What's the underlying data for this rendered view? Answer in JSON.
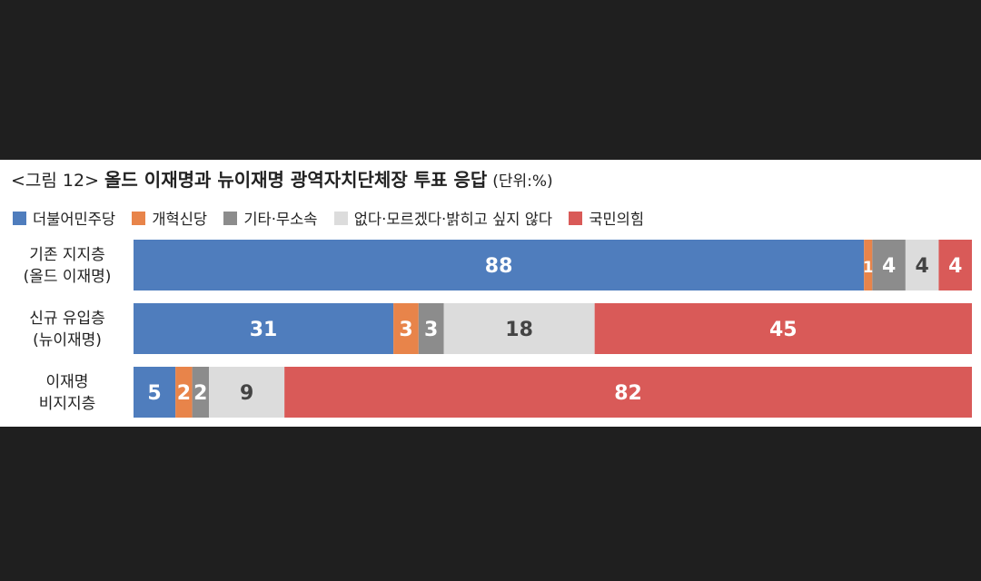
{
  "chart_data": {
    "type": "bar",
    "orientation": "horizontal",
    "stacked": true,
    "title_prefix": "<그림 12>",
    "title": "올드 이재명과 뉴이재명 광역자치단체장 투표 응답",
    "unit": "(단위:%)",
    "legend_placement": "top",
    "categories": [
      [
        "기존 지지층",
        "(올드 이재명)"
      ],
      [
        "신규 유입층",
        "(뉴이재명)"
      ],
      [
        "이재명",
        "비지지층"
      ]
    ],
    "series": [
      {
        "name": "더불어민주당",
        "color": "#4f7dbd",
        "label_color": "#ffffff",
        "values": [
          88,
          31,
          5
        ]
      },
      {
        "name": "개혁신당",
        "color": "#e8844a",
        "label_color": "#ffffff",
        "values": [
          1,
          3,
          2
        ]
      },
      {
        "name": "기타·무소속",
        "color": "#8c8c8c",
        "label_color": "#ffffff",
        "values": [
          4,
          3,
          2
        ]
      },
      {
        "name": "없다·모르겠다·밝히고 싶지 않다",
        "color": "#dcdcdc",
        "label_color": "#444444",
        "values": [
          4,
          18,
          9
        ]
      },
      {
        "name": "국민의힘",
        "color": "#d95a58",
        "label_color": "#ffffff",
        "values": [
          4,
          45,
          82
        ]
      }
    ]
  }
}
